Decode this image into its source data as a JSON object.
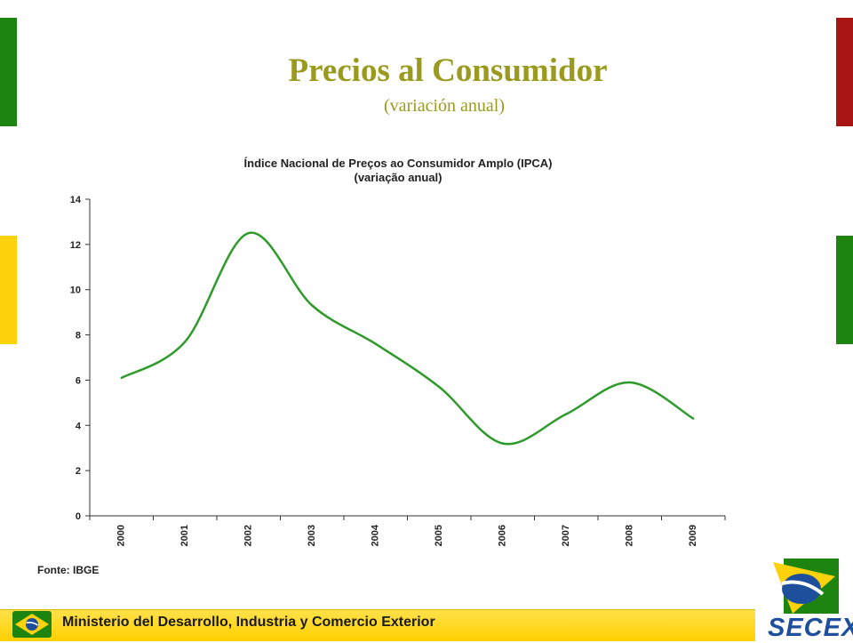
{
  "slide": {
    "title": "Precios al Consumidor",
    "subtitle": "(variación anual)",
    "source": "Fonte: IBGE",
    "footer": "Ministerio del Desarrollo, Industria y Comercio Exterior",
    "logo_text": "SECEX"
  },
  "colors": {
    "bar_green": "#1d8410",
    "bar_red": "#a91513",
    "bar_yellow": "#fdd20a",
    "line": "#2d9a2a",
    "title": "#9a9a1e"
  },
  "chart_data": {
    "type": "line",
    "title": "Índice Nacional de Preços ao Consumidor Amplo (IPCA)",
    "subtitle": "(variação anual)",
    "categories": [
      "2000",
      "2001",
      "2002",
      "2003",
      "2004",
      "2005",
      "2006",
      "2007",
      "2008",
      "2009"
    ],
    "series": [
      {
        "values": [
          6.1,
          7.7,
          12.5,
          9.3,
          7.6,
          5.7,
          3.2,
          4.5,
          5.9,
          4.3
        ]
      }
    ],
    "yticks": [
      0,
      2,
      4,
      6,
      8,
      10,
      12,
      14
    ],
    "ylim": [
      0,
      14
    ],
    "grid": false,
    "legend": "none"
  }
}
